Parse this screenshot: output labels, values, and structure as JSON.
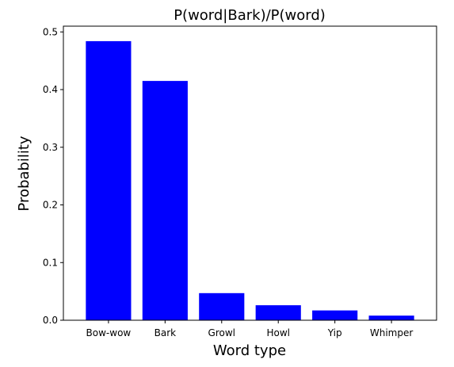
{
  "chart_data": {
    "type": "bar",
    "title": "P(word|Bark)/P(word)",
    "xlabel": "Word type",
    "ylabel": "Probability",
    "categories": [
      "Bow-wow",
      "Bark",
      "Growl",
      "Howl",
      "Yip",
      "Whimper"
    ],
    "values": [
      0.484,
      0.415,
      0.047,
      0.026,
      0.017,
      0.008
    ],
    "ylim": [
      0,
      0.51
    ],
    "yticks": [
      0.0,
      0.1,
      0.2,
      0.3,
      0.4,
      0.5
    ],
    "ytick_labels": [
      "0.0",
      "0.1",
      "0.2",
      "0.3",
      "0.4",
      "0.5"
    ],
    "bar_color": "#0000ff",
    "grid": false,
    "legend": "none"
  }
}
